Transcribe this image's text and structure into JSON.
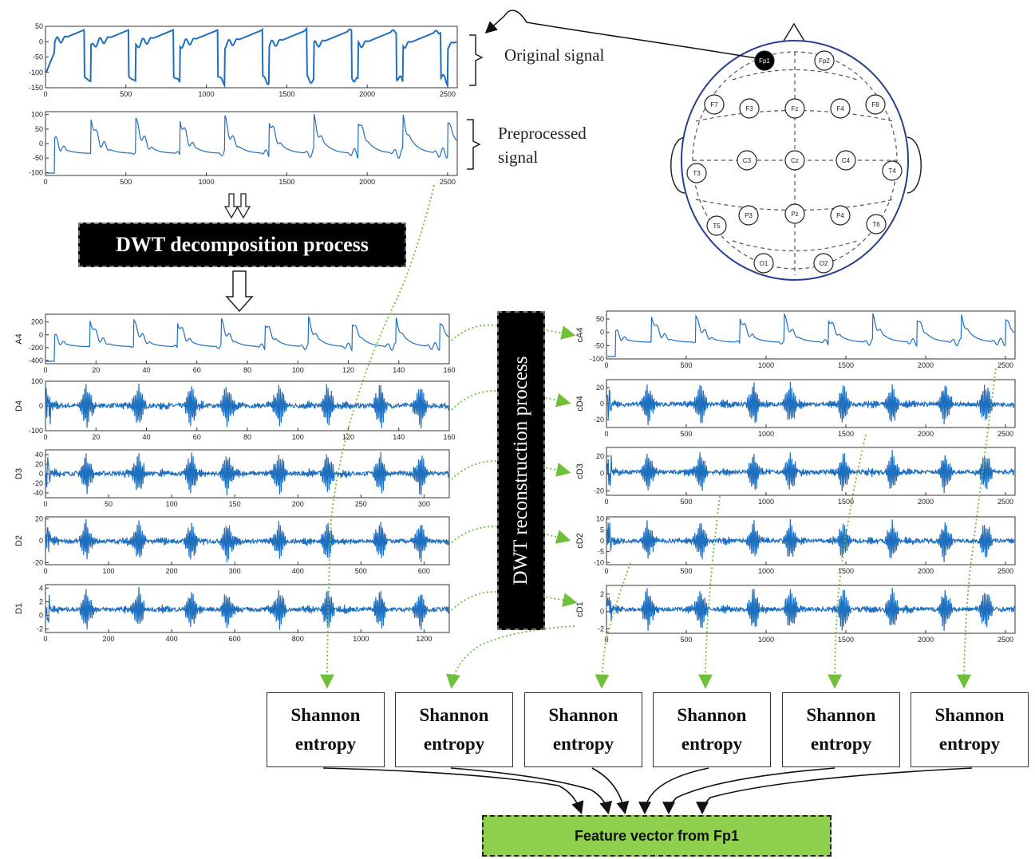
{
  "labels": {
    "original": "Original signal",
    "preprocessed_line1": "Preprocessed",
    "preprocessed_line2": "signal",
    "dwt_decomposition": "DWT decomposition process",
    "dwt_reconstruction": "DWT reconstruction process",
    "feature_vector": "Feature vector from Fp1"
  },
  "entropy_boxes": [
    {
      "line1": "Shannon",
      "line2": "entropy"
    },
    {
      "line1": "Shannon",
      "line2": "entropy"
    },
    {
      "line1": "Shannon",
      "line2": "entropy"
    },
    {
      "line1": "Shannon",
      "line2": "entropy"
    },
    {
      "line1": "Shannon",
      "line2": "entropy"
    },
    {
      "line1": "Shannon",
      "line2": "entropy"
    }
  ],
  "electrodes": [
    "Fp1",
    "Fp2",
    "F7",
    "F3",
    "Fz",
    "F4",
    "F8",
    "T3",
    "C3",
    "Cz",
    "C4",
    "T4",
    "T5",
    "P3",
    "Pz",
    "P4",
    "T6",
    "O1",
    "O2"
  ],
  "highlighted_electrode": "Fp1",
  "colors": {
    "signal": "#1f6fbf",
    "arrow": "#6fbf3a",
    "feature": "#8fd14f"
  },
  "chart_data": [
    {
      "type": "line",
      "id": "original",
      "ylabel": "",
      "xticks": [
        0,
        500,
        1000,
        1500,
        2000,
        2500
      ],
      "yticks": [
        50,
        0,
        -50,
        -100,
        -150
      ],
      "xlim": [
        0,
        2560
      ],
      "ylim": [
        -150,
        50
      ]
    },
    {
      "type": "line",
      "id": "preprocessed",
      "ylabel": "",
      "xticks": [
        0,
        500,
        1000,
        1500,
        2000,
        2500
      ],
      "yticks": [
        100,
        50,
        0,
        -50,
        -100
      ],
      "xlim": [
        0,
        2560
      ],
      "ylim": [
        -110,
        110
      ]
    },
    {
      "type": "line",
      "id": "A4",
      "ylabel": "A4",
      "xticks": [
        0,
        20,
        40,
        60,
        80,
        100,
        120,
        140,
        160
      ],
      "yticks": [
        200,
        0,
        -200,
        -400
      ],
      "xlim": [
        0,
        160
      ],
      "ylim": [
        -450,
        320
      ]
    },
    {
      "type": "line",
      "id": "D4",
      "ylabel": "D4",
      "xticks": [
        0,
        20,
        40,
        60,
        80,
        100,
        120,
        140,
        160
      ],
      "yticks": [
        100,
        0,
        -100
      ],
      "xlim": [
        0,
        160
      ],
      "ylim": [
        -100,
        100
      ]
    },
    {
      "type": "line",
      "id": "D3",
      "ylabel": "D3",
      "xticks": [
        0,
        50,
        100,
        150,
        200,
        250,
        300
      ],
      "yticks": [
        40,
        20,
        0,
        -20,
        -40
      ],
      "xlim": [
        0,
        320
      ],
      "ylim": [
        -50,
        50
      ]
    },
    {
      "type": "line",
      "id": "D2",
      "ylabel": "D2",
      "xticks": [
        0,
        100,
        200,
        300,
        400,
        500,
        600
      ],
      "yticks": [
        20,
        0,
        -20
      ],
      "xlim": [
        0,
        640
      ],
      "ylim": [
        -22,
        22
      ]
    },
    {
      "type": "line",
      "id": "D1",
      "ylabel": "D1",
      "xticks": [
        0,
        200,
        400,
        600,
        800,
        1000,
        1200
      ],
      "yticks": [
        4,
        2,
        0,
        -2
      ],
      "xlim": [
        0,
        1280
      ],
      "ylim": [
        -2.5,
        4.5
      ]
    },
    {
      "type": "line",
      "id": "cA4",
      "ylabel": "cA4",
      "xticks": [
        0,
        500,
        1000,
        1500,
        2000,
        2500
      ],
      "yticks": [
        50,
        0,
        -50,
        -100
      ],
      "xlim": [
        0,
        2560
      ],
      "ylim": [
        -100,
        80
      ]
    },
    {
      "type": "line",
      "id": "cD4",
      "ylabel": "cD4",
      "xticks": [
        0,
        500,
        1000,
        1500,
        2000,
        2500
      ],
      "yticks": [
        20,
        0,
        -20
      ],
      "xlim": [
        0,
        2560
      ],
      "ylim": [
        -30,
        30
      ]
    },
    {
      "type": "line",
      "id": "cD3",
      "ylabel": "cD3",
      "xticks": [
        0,
        500,
        1000,
        1500,
        2000,
        2500
      ],
      "yticks": [
        20,
        0,
        -20
      ],
      "xlim": [
        0,
        2560
      ],
      "ylim": [
        -25,
        30
      ]
    },
    {
      "type": "line",
      "id": "cD2",
      "ylabel": "cD2",
      "xticks": [
        0,
        500,
        1000,
        1500,
        2000,
        2500
      ],
      "yticks": [
        10,
        5,
        0,
        -5,
        -10
      ],
      "xlim": [
        0,
        2560
      ],
      "ylim": [
        -11,
        11
      ]
    },
    {
      "type": "line",
      "id": "cD1",
      "ylabel": "cD1",
      "xticks": [
        0,
        500,
        1000,
        1500,
        2000,
        2500
      ],
      "yticks": [
        2,
        0,
        -2
      ],
      "xlim": [
        0,
        2560
      ],
      "ylim": [
        -2.5,
        3
      ]
    }
  ]
}
